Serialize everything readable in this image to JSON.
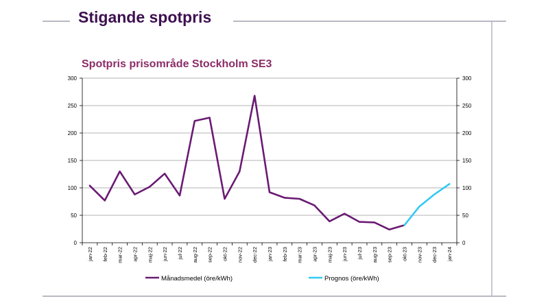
{
  "slide": {
    "title": "Stigande spotpris"
  },
  "chart_data": {
    "type": "line",
    "title": "Spotpris prisområde Stockholm SE3",
    "categories": [
      "jan-22",
      "feb-22",
      "mar-22",
      "apr-22",
      "maj-22",
      "jun-22",
      "jul-22",
      "aug-22",
      "sep-22",
      "okt-22",
      "nov-22",
      "dec-22",
      "jan-23",
      "feb-23",
      "mar-23",
      "apr-23",
      "maj-23",
      "jun-23",
      "jul-23",
      "aug-23",
      "sep-23",
      "okt-23",
      "nov-23",
      "dec-23",
      "jan-24"
    ],
    "ylim": [
      0,
      300
    ],
    "yticks": [
      0,
      50,
      100,
      150,
      200,
      250,
      300
    ],
    "grid": true,
    "secondary_axis": true,
    "legend_position": "bottom",
    "series": [
      {
        "name": "Månadsmedel (öre/kWh)",
        "color": "#6a1a73",
        "values": [
          104,
          77,
          130,
          88,
          102,
          126,
          86,
          222,
          228,
          80,
          130,
          268,
          92,
          82,
          80,
          68,
          39,
          53,
          38,
          37,
          24,
          32,
          null,
          null,
          null
        ]
      },
      {
        "name": "Prognos (öre/kWh)",
        "color": "#33c9f2",
        "values": [
          null,
          null,
          null,
          null,
          null,
          null,
          null,
          null,
          null,
          null,
          null,
          null,
          null,
          null,
          null,
          null,
          null,
          null,
          null,
          null,
          null,
          32,
          66,
          88,
          107
        ]
      }
    ]
  }
}
